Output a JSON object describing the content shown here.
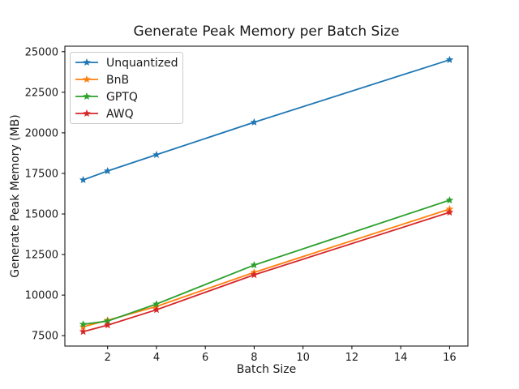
{
  "chart_data": {
    "type": "line",
    "title": "Generate Peak Memory per Batch Size",
    "xlabel": "Batch Size",
    "ylabel": "Generate Peak Memory (MB)",
    "x": [
      1,
      2,
      4,
      8,
      16
    ],
    "series": [
      {
        "name": "Unquantized",
        "color": "#1f77b4",
        "values": [
          17100,
          17650,
          18650,
          20650,
          24500
        ]
      },
      {
        "name": "BnB",
        "color": "#ff7f0e",
        "values": [
          8050,
          8450,
          9300,
          11400,
          15300
        ]
      },
      {
        "name": "GPTQ",
        "color": "#2ca02c",
        "values": [
          8200,
          8400,
          9450,
          11850,
          15850
        ]
      },
      {
        "name": "AWQ",
        "color": "#d62728",
        "values": [
          7750,
          8150,
          9100,
          11250,
          15100
        ]
      }
    ],
    "marker": "star",
    "xticks": [
      2,
      4,
      6,
      8,
      10,
      12,
      14,
      16
    ],
    "yticks": [
      7500,
      10000,
      12500,
      15000,
      17500,
      20000,
      22500,
      25000
    ],
    "xlim": [
      0.25,
      16.75
    ],
    "ylim": [
      6860,
      25340
    ],
    "grid": false,
    "legend_position": "upper left",
    "frame_color": "#000000",
    "legend_border_color": "#cccccc",
    "text_color": "#1a1a1a"
  }
}
